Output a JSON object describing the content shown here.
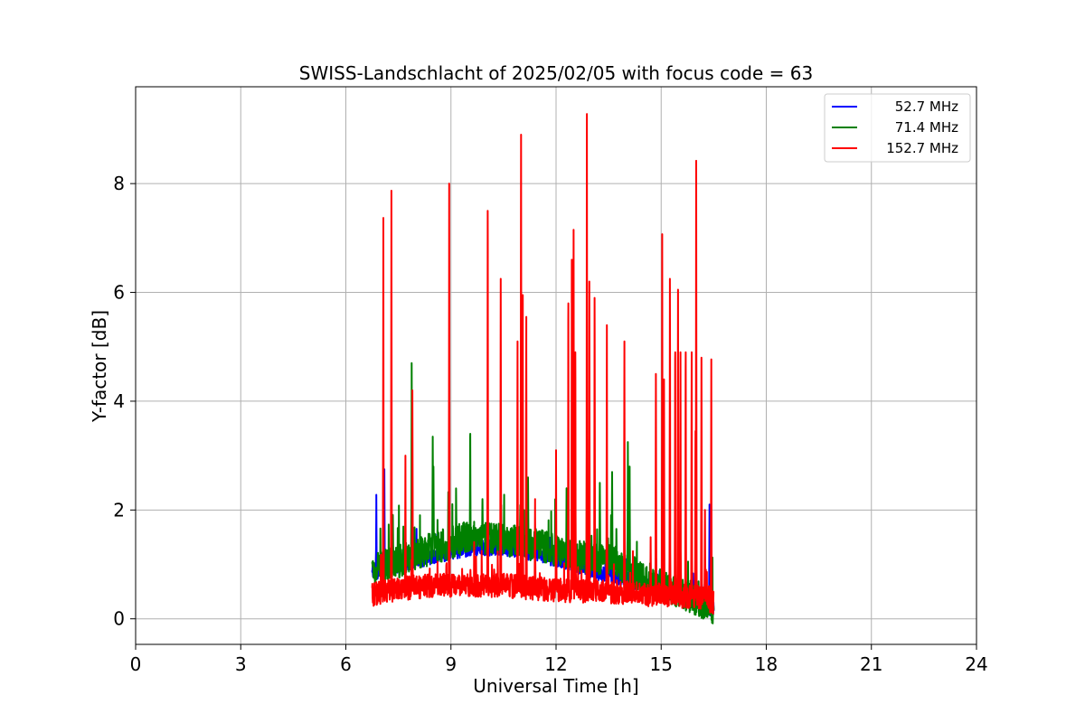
{
  "chart_data": {
    "type": "line",
    "title": "SWISS-Landschlacht of 2025/02/05 with focus code = 63",
    "xlabel": "Universal Time [h]",
    "ylabel": "Y-factor [dB]",
    "xlim": [
      0,
      24
    ],
    "ylim": [
      -0.47,
      9.78
    ],
    "xticks": [
      0,
      3,
      6,
      9,
      12,
      15,
      18,
      21,
      24
    ],
    "yticks": [
      0,
      2,
      4,
      6,
      8
    ],
    "grid": true,
    "legend_position": "top-right",
    "series": [
      {
        "name": "52.7 MHz",
        "color": "#0000ff",
        "baseline": [
          [
            6.75,
            0.85
          ],
          [
            7.5,
            1.0
          ],
          [
            8.5,
            1.15
          ],
          [
            9.5,
            1.3
          ],
          [
            10.5,
            1.3
          ],
          [
            11.5,
            1.2
          ],
          [
            12.5,
            1.0
          ],
          [
            13.5,
            0.8
          ],
          [
            14.5,
            0.65
          ],
          [
            15.5,
            0.5
          ],
          [
            16.2,
            0.3
          ],
          [
            16.5,
            0.15
          ]
        ],
        "noise": 0.15,
        "spikes": [
          [
            6.87,
            2.28
          ],
          [
            7.1,
            2.75
          ],
          [
            16.38,
            2.1
          ]
        ]
      },
      {
        "name": "71.4 MHz",
        "color": "#008000",
        "baseline": [
          [
            6.75,
            0.9
          ],
          [
            7.5,
            1.05
          ],
          [
            8.5,
            1.3
          ],
          [
            9.5,
            1.5
          ],
          [
            10.5,
            1.45
          ],
          [
            11.5,
            1.35
          ],
          [
            12.5,
            1.15
          ],
          [
            13.5,
            1.1
          ],
          [
            14.5,
            0.75
          ],
          [
            15.5,
            0.5
          ],
          [
            16.2,
            0.3
          ],
          [
            16.5,
            0.2
          ]
        ],
        "noise": 0.3,
        "spikes": [
          [
            7.88,
            4.7
          ],
          [
            8.48,
            3.35
          ],
          [
            8.5,
            2.8
          ],
          [
            9.55,
            3.4
          ],
          [
            9.9,
            2.2
          ],
          [
            11.0,
            2.95
          ],
          [
            11.2,
            2.6
          ],
          [
            12.3,
            2.4
          ],
          [
            12.88,
            3.3
          ],
          [
            13.25,
            2.5
          ],
          [
            13.6,
            2.7
          ],
          [
            14.05,
            3.25
          ],
          [
            14.1,
            2.8
          ]
        ]
      },
      {
        "name": "152.7 MHz",
        "color": "#ff0000",
        "baseline": [
          [
            6.75,
            0.45
          ],
          [
            7.5,
            0.55
          ],
          [
            8.5,
            0.62
          ],
          [
            9.5,
            0.6
          ],
          [
            10.5,
            0.62
          ],
          [
            11.5,
            0.55
          ],
          [
            12.5,
            0.5
          ],
          [
            13.5,
            0.5
          ],
          [
            14.5,
            0.45
          ],
          [
            15.5,
            0.42
          ],
          [
            16.2,
            0.4
          ],
          [
            16.5,
            0.3
          ]
        ],
        "noise": 0.22,
        "spikes": [
          [
            7.07,
            7.37
          ],
          [
            7.3,
            7.87
          ],
          [
            7.7,
            3.0
          ],
          [
            7.9,
            4.2
          ],
          [
            8.95,
            8.0
          ],
          [
            10.05,
            7.5
          ],
          [
            10.42,
            6.25
          ],
          [
            10.9,
            5.1
          ],
          [
            11.0,
            8.9
          ],
          [
            11.05,
            5.95
          ],
          [
            11.15,
            5.55
          ],
          [
            11.4,
            2.2
          ],
          [
            12.0,
            3.1
          ],
          [
            12.35,
            5.8
          ],
          [
            12.45,
            6.6
          ],
          [
            12.5,
            7.15
          ],
          [
            12.55,
            4.9
          ],
          [
            12.88,
            9.28
          ],
          [
            12.95,
            6.2
          ],
          [
            13.1,
            5.9
          ],
          [
            13.45,
            5.4
          ],
          [
            13.95,
            5.1
          ],
          [
            14.7,
            1.5
          ],
          [
            14.85,
            4.5
          ],
          [
            15.03,
            7.07
          ],
          [
            15.08,
            4.4
          ],
          [
            15.25,
            6.25
          ],
          [
            15.4,
            4.9
          ],
          [
            15.48,
            6.05
          ],
          [
            15.55,
            4.9
          ],
          [
            15.7,
            4.9
          ],
          [
            15.87,
            4.9
          ],
          [
            15.98,
            3.45
          ],
          [
            16.0,
            8.42
          ],
          [
            16.15,
            4.8
          ],
          [
            16.25,
            2.0
          ],
          [
            16.43,
            4.77
          ]
        ]
      }
    ]
  }
}
